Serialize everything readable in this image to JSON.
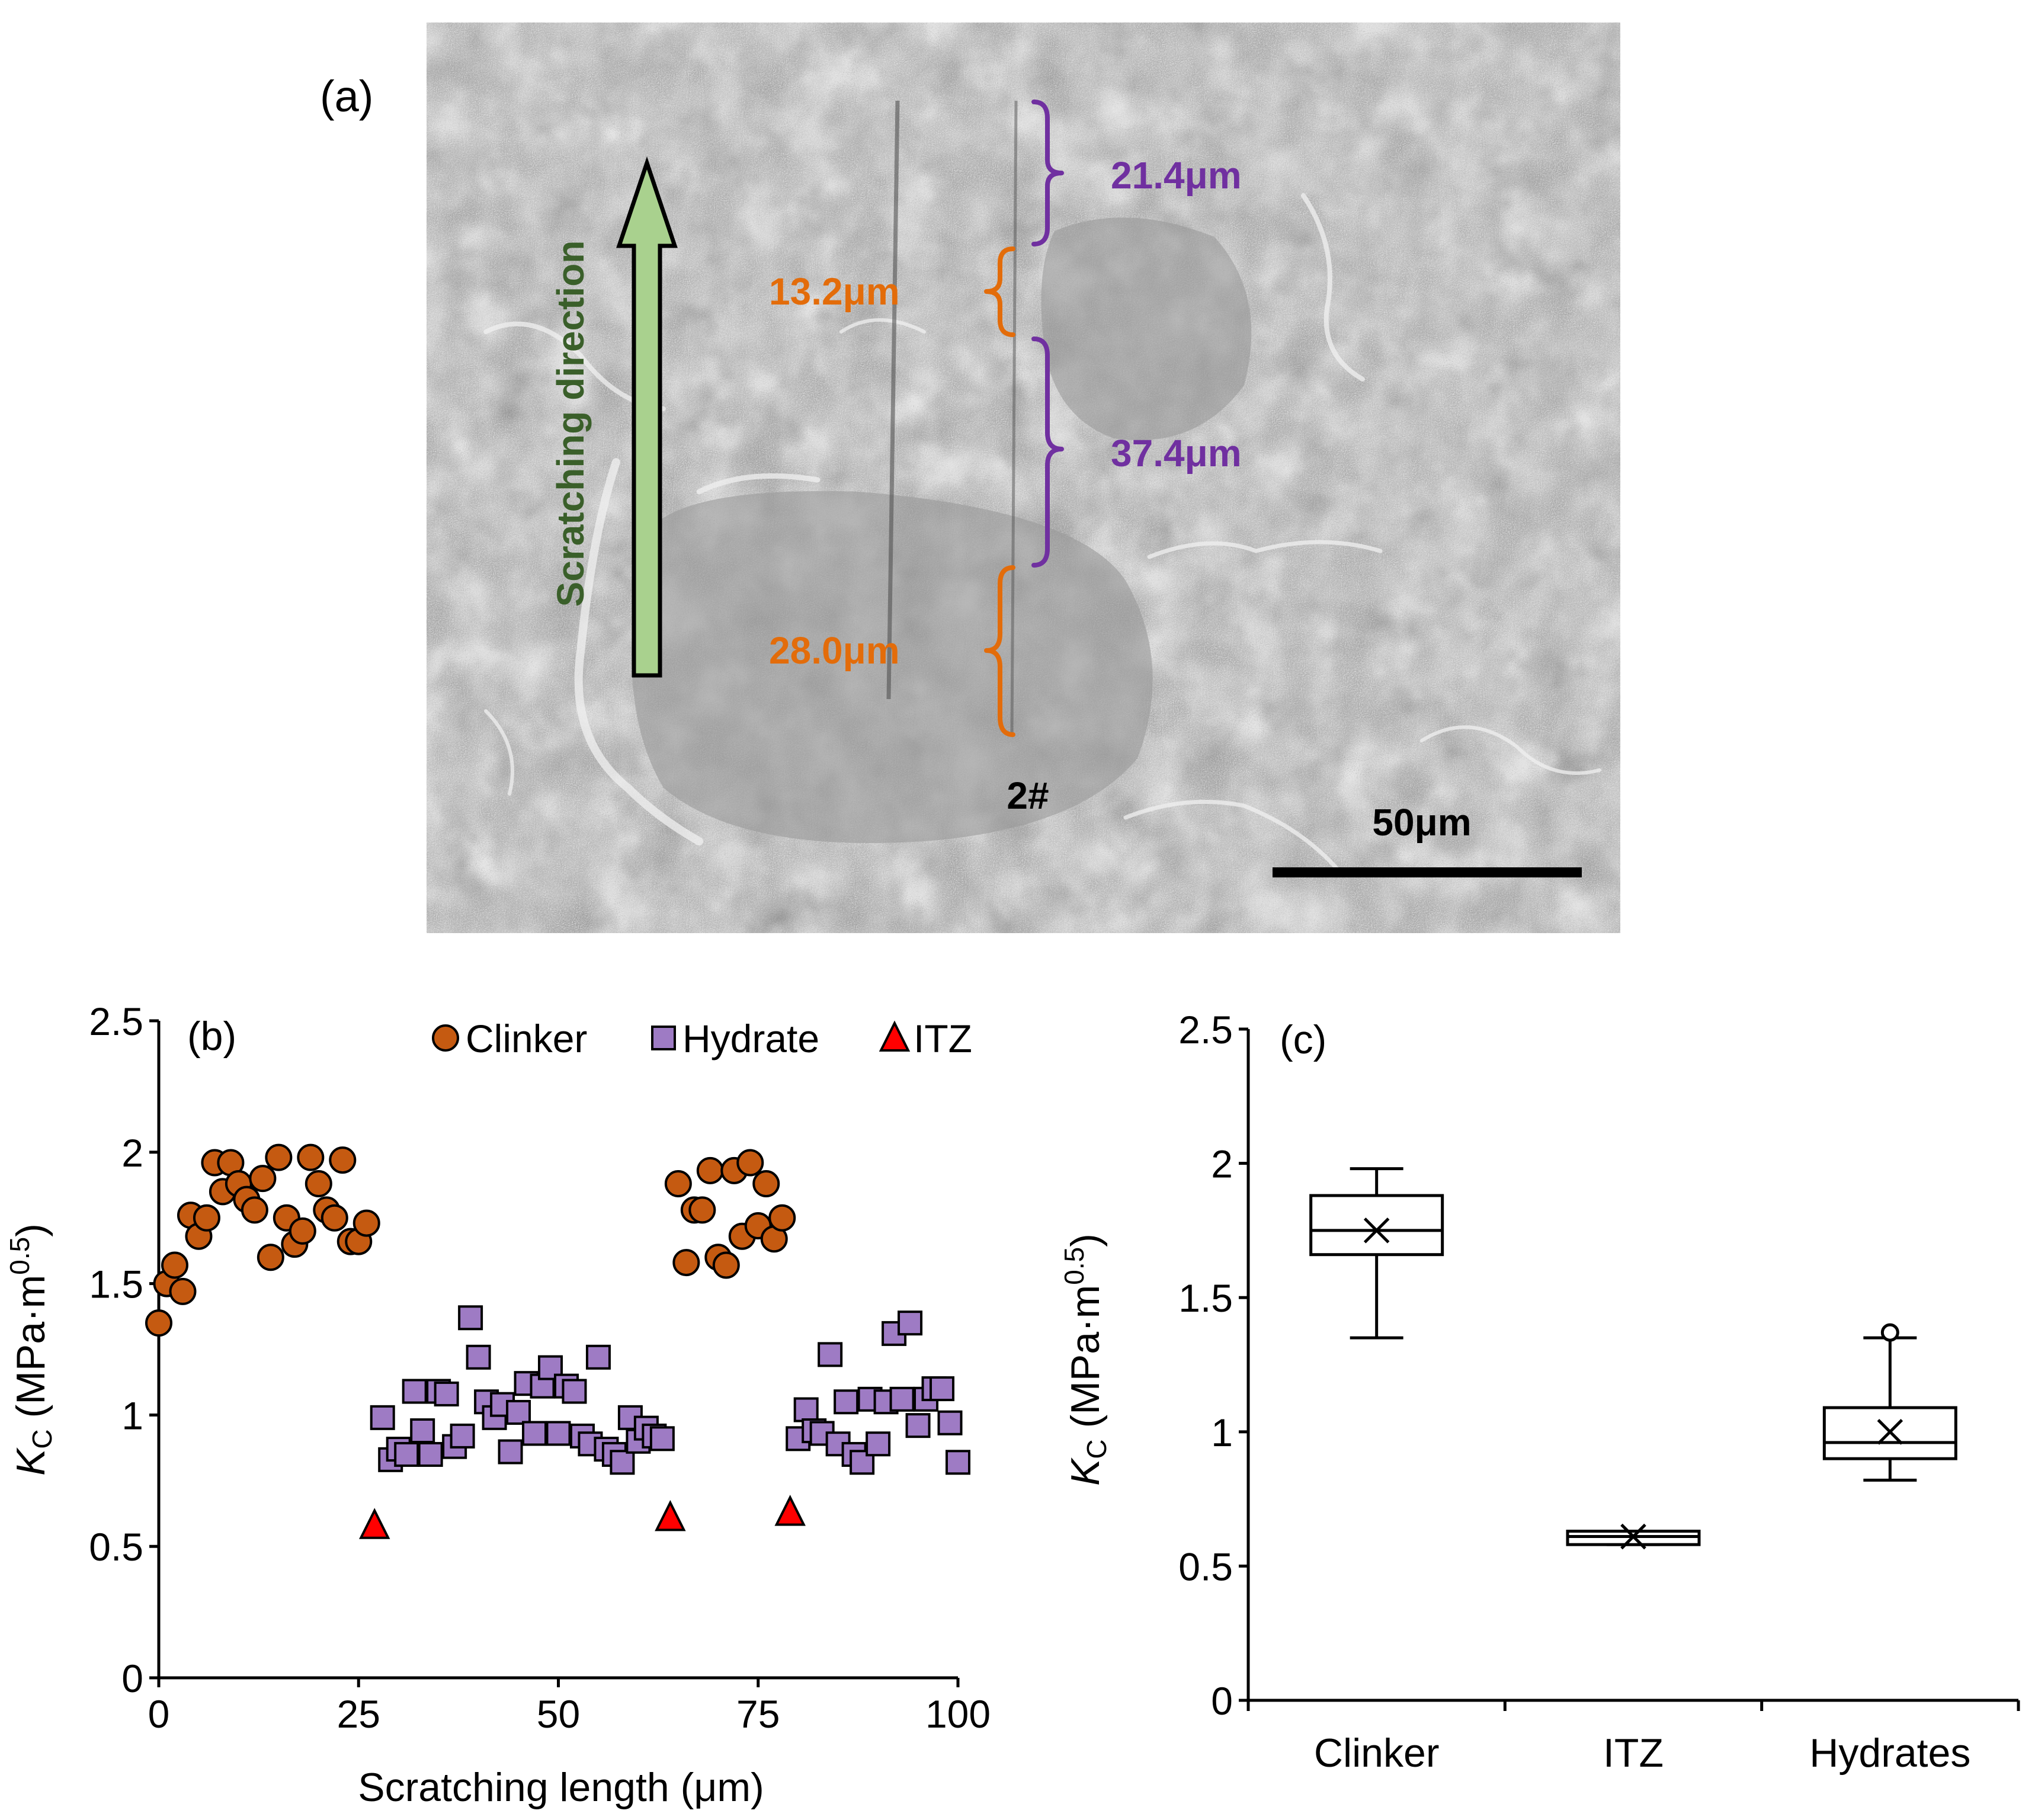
{
  "panel_a": {
    "label": "(a)",
    "arrow_label": "Scratching direction",
    "scratch_id": "2#",
    "scale_bar": "50μm",
    "segments": [
      {
        "text": "21.4μm",
        "color": "#7030A0"
      },
      {
        "text": "13.2μm",
        "color": "#E36C0A"
      },
      {
        "text": "37.4μm",
        "color": "#7030A0"
      },
      {
        "text": "28.0μm",
        "color": "#E36C0A"
      }
    ],
    "arrow_color": "#A9D18E",
    "arrow_text_color": "#3A5F2A"
  },
  "chart_data": [
    {
      "type": "scatter",
      "panel_label": "(b)",
      "xlabel": "Scratching length (μm)",
      "ylabel": "K_C (MPa·m^0.5)",
      "ylabel_parts": {
        "k": "K",
        "sub": "C",
        "unit": " (MPa·m",
        "sup": "0.5",
        "close": ")"
      },
      "xlim": [
        0,
        100
      ],
      "ylim": [
        0,
        2.5
      ],
      "xticks": [
        0,
        25,
        50,
        75,
        100
      ],
      "xtick_labels": [
        "0",
        "25",
        "50",
        "75",
        "100"
      ],
      "yticks": [
        0,
        0.5,
        1,
        1.5,
        2,
        2.5
      ],
      "ytick_labels": [
        "0",
        "0.5",
        "1",
        "1.5",
        "2",
        "2.5"
      ],
      "legend_position": "top",
      "series": [
        {
          "name": "Clinker",
          "marker": "circle",
          "color": "#C55A11",
          "x": [
            0,
            1,
            2,
            3,
            4,
            5,
            6,
            7,
            8,
            9,
            10,
            11,
            12,
            13,
            14,
            15,
            16,
            17,
            18,
            19,
            20,
            21,
            22,
            23,
            24,
            25,
            26,
            65,
            66,
            67,
            68,
            69,
            70,
            71,
            72,
            73,
            74,
            75,
            76,
            77,
            78
          ],
          "y": [
            1.35,
            1.5,
            1.57,
            1.47,
            1.76,
            1.68,
            1.75,
            1.96,
            1.85,
            1.96,
            1.88,
            1.82,
            1.78,
            1.9,
            1.6,
            1.98,
            1.75,
            1.65,
            1.7,
            1.98,
            1.88,
            1.78,
            1.75,
            1.97,
            1.66,
            1.66,
            1.73,
            1.88,
            1.58,
            1.78,
            1.78,
            1.93,
            1.6,
            1.57,
            1.93,
            1.68,
            1.96,
            1.72,
            1.88,
            1.67,
            1.75
          ]
        },
        {
          "name": "Hydrate",
          "marker": "square",
          "color": "#9E7BC4",
          "x": [
            28,
            29,
            30,
            31,
            32,
            33,
            34,
            35,
            36,
            37,
            38,
            39,
            40,
            41,
            42,
            43,
            44,
            45,
            46,
            47,
            48,
            49,
            50,
            51,
            52,
            53,
            54,
            55,
            56,
            57,
            58,
            59,
            60,
            61,
            62,
            63,
            80,
            81,
            82,
            83,
            84,
            85,
            86,
            87,
            88,
            89,
            90,
            91,
            92,
            93,
            94,
            95,
            96,
            97,
            98,
            99,
            100
          ],
          "y": [
            0.99,
            0.83,
            0.87,
            0.85,
            1.09,
            0.94,
            0.85,
            1.09,
            1.08,
            0.88,
            0.92,
            1.37,
            1.22,
            1.05,
            0.99,
            1.04,
            0.86,
            1.01,
            1.12,
            0.93,
            1.11,
            1.18,
            0.93,
            1.11,
            1.09,
            0.92,
            0.89,
            1.22,
            0.87,
            0.85,
            0.82,
            0.99,
            0.9,
            0.95,
            0.92,
            0.91,
            0.91,
            1.02,
            0.94,
            0.93,
            1.23,
            0.89,
            1.05,
            0.85,
            0.82,
            1.06,
            0.89,
            1.05,
            1.31,
            1.06,
            1.35,
            0.96,
            1.06,
            1.1,
            1.1,
            0.97,
            0.82
          ]
        },
        {
          "name": "ITZ",
          "marker": "triangle",
          "color": "#FF0000",
          "x": [
            27,
            64,
            79
          ],
          "y": [
            0.58,
            0.61,
            0.63
          ]
        }
      ]
    },
    {
      "type": "box",
      "panel_label": "(c)",
      "ylabel": "K_C (MPa·m^0.5)",
      "ylim": [
        0,
        2.5
      ],
      "yticks": [
        0,
        0.5,
        1,
        1.5,
        2,
        2.5
      ],
      "ytick_labels": [
        "0",
        "0.5",
        "1",
        "1.5",
        "2",
        "2.5"
      ],
      "categories": [
        "Clinker",
        "ITZ",
        "Hydrates"
      ],
      "boxes": [
        {
          "name": "Clinker",
          "min": 1.35,
          "q1": 1.66,
          "median": 1.75,
          "q3": 1.88,
          "max": 1.98,
          "mean": 1.75,
          "outliers": []
        },
        {
          "name": "ITZ",
          "min": 0.58,
          "q1": 0.58,
          "median": 0.61,
          "q3": 0.63,
          "max": 0.63,
          "mean": 0.61,
          "outliers": []
        },
        {
          "name": "Hydrates",
          "min": 0.82,
          "q1": 0.9,
          "median": 0.96,
          "q3": 1.09,
          "max": 1.35,
          "mean": 1.0,
          "outliers": [
            1.37
          ]
        }
      ]
    }
  ]
}
